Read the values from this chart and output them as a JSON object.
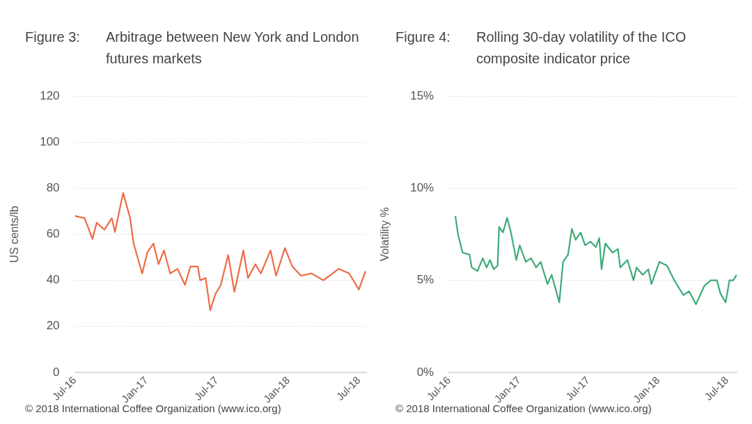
{
  "chart_data": [
    {
      "type": "line",
      "title": "Figure 3:",
      "subtitle": "Arbitrage between New York and London futures markets",
      "ylabel": "US cents/lb",
      "annotations": [
        "© 2018 International Coffee Organization (www.ico.org)"
      ],
      "series": [
        {
          "color": "#ee6a45",
          "x": [
            "2016-07-01",
            "2016-07-26",
            "2016-08-15",
            "2016-08-26",
            "2016-09-15",
            "2016-10-04",
            "2016-10-12",
            "2016-11-02",
            "2016-11-20",
            "2016-11-29",
            "2016-12-21",
            "2017-01-03",
            "2017-01-19",
            "2017-02-01",
            "2017-02-15",
            "2017-03-03",
            "2017-03-22",
            "2017-04-10",
            "2017-04-24",
            "2017-05-13",
            "2017-05-19",
            "2017-06-02",
            "2017-06-14",
            "2017-06-27",
            "2017-07-11",
            "2017-07-30",
            "2017-08-15",
            "2017-09-07",
            "2017-09-19",
            "2017-10-08",
            "2017-10-22",
            "2017-11-16",
            "2017-11-30",
            "2017-12-23",
            "2018-01-11",
            "2018-02-02",
            "2018-03-01",
            "2018-04-01",
            "2018-05-10",
            "2018-06-06",
            "2018-07-01",
            "2018-07-18"
          ],
          "values": [
            68,
            67,
            58,
            65,
            62,
            67,
            61,
            78,
            67,
            56,
            43,
            52,
            56,
            47,
            53,
            43,
            45,
            38,
            46,
            46,
            40,
            41,
            27,
            34,
            38,
            51,
            35,
            53,
            41,
            47,
            43,
            53,
            42,
            54,
            46,
            42,
            43,
            40,
            45,
            43,
            36,
            44
          ]
        }
      ],
      "xlim": [
        "2016-07-01",
        "2018-07-20"
      ],
      "xticks": [
        {
          "value": "2016-07-01",
          "label": "Jul-16"
        },
        {
          "value": "2017-01-01",
          "label": "Jan-17"
        },
        {
          "value": "2017-07-01",
          "label": "Jul-17"
        },
        {
          "value": "2018-01-01",
          "label": "Jan-18"
        },
        {
          "value": "2018-07-01",
          "label": "Jul-18"
        }
      ],
      "ylim": [
        0,
        120
      ],
      "yticks": [
        0,
        20,
        40,
        60,
        80,
        100,
        120
      ],
      "grid": "y",
      "marker": "none",
      "line_style": "solid"
    },
    {
      "type": "line",
      "title": "Figure 4:",
      "subtitle": "Rolling 30-day volatility of the ICO composite indicator price",
      "ylabel": "Volatility %",
      "annotations": [
        "© 2018 International Coffee Organization (www.ico.org)"
      ],
      "series": [
        {
          "color": "#3daa78",
          "x": [
            "2016-07-17",
            "2016-07-24",
            "2016-08-05",
            "2016-08-23",
            "2016-08-29",
            "2016-09-13",
            "2016-09-27",
            "2016-10-07",
            "2016-10-16",
            "2016-10-26",
            "2016-11-05",
            "2016-11-09",
            "2016-11-19",
            "2016-11-30",
            "2016-12-10",
            "2016-12-24",
            "2017-01-02",
            "2017-01-18",
            "2017-02-01",
            "2017-02-14",
            "2017-02-26",
            "2017-03-16",
            "2017-03-27",
            "2017-04-16",
            "2017-04-26",
            "2017-05-09",
            "2017-05-19",
            "2017-05-29",
            "2017-06-11",
            "2017-06-23",
            "2017-07-07",
            "2017-07-21",
            "2017-07-30",
            "2017-08-05",
            "2017-08-15",
            "2017-09-03",
            "2017-09-17",
            "2017-09-23",
            "2017-10-12",
            "2017-10-28",
            "2017-11-05",
            "2017-11-21",
            "2017-12-06",
            "2017-12-14",
            "2018-01-04",
            "2018-01-24",
            "2018-02-12",
            "2018-03-08",
            "2018-03-23",
            "2018-04-10",
            "2018-05-02",
            "2018-05-19",
            "2018-06-04",
            "2018-06-13",
            "2018-06-27",
            "2018-07-07",
            "2018-07-17",
            "2018-07-26"
          ],
          "values": [
            8.5,
            7.5,
            6.5,
            6.4,
            5.7,
            5.5,
            6.2,
            5.7,
            6.1,
            5.6,
            5.8,
            7.9,
            7.6,
            8.4,
            7.6,
            6.1,
            6.9,
            6.0,
            6.2,
            5.7,
            6.0,
            4.8,
            5.3,
            3.8,
            6.0,
            6.4,
            7.8,
            7.2,
            7.6,
            6.9,
            7.1,
            6.8,
            7.3,
            5.6,
            7.0,
            6.5,
            6.7,
            5.7,
            6.1,
            5.0,
            5.7,
            5.3,
            5.6,
            4.8,
            6.0,
            5.8,
            5.0,
            4.2,
            4.4,
            3.7,
            4.7,
            5.0,
            5.0,
            4.3,
            3.8,
            5.0,
            5.0,
            5.3
          ]
        }
      ],
      "xlim": [
        "2016-07-01",
        "2018-07-26"
      ],
      "xticks": [
        {
          "value": "2016-07-01",
          "label": "Jul-16"
        },
        {
          "value": "2017-01-01",
          "label": "Jan-17"
        },
        {
          "value": "2017-07-01",
          "label": "Jul-17"
        },
        {
          "value": "2018-01-01",
          "label": "Jan-18"
        },
        {
          "value": "2018-07-01",
          "label": "Jul-18"
        }
      ],
      "ylim": [
        0,
        15
      ],
      "yticks": [
        {
          "value": 0,
          "label": "0%"
        },
        {
          "value": 5,
          "label": "5%"
        },
        {
          "value": 10,
          "label": "10%"
        },
        {
          "value": 15,
          "label": "15%"
        }
      ],
      "grid": "y",
      "marker": "none",
      "line_style": "solid"
    }
  ]
}
